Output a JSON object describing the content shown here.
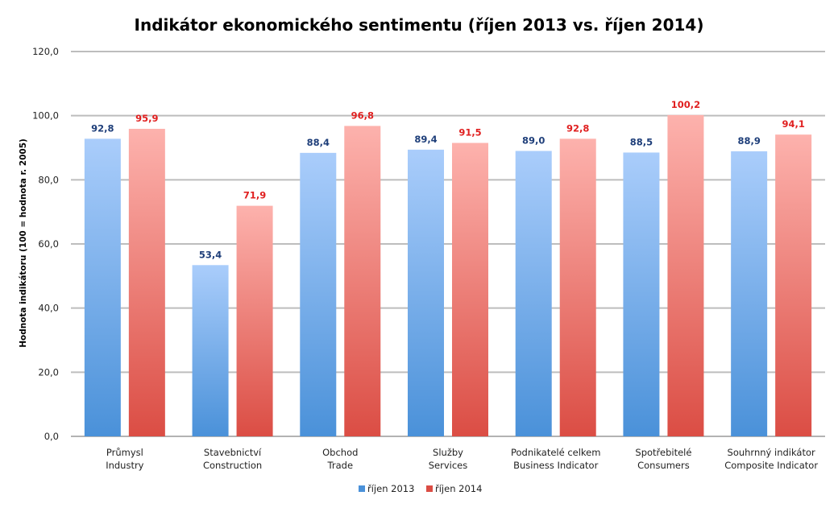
{
  "chart_data": {
    "type": "bar",
    "title": "Indikátor ekonomického sentimentu (říjen 2013 vs. říjen 2014)",
    "xlabel": "",
    "ylabel": "Hodnota indikátoru (100 = hodnota r. 2005)",
    "ylim": [
      0,
      120
    ],
    "yticks": [
      0,
      20,
      40,
      60,
      80,
      100,
      120
    ],
    "ytick_labels": [
      "0,0",
      "20,0",
      "40,0",
      "60,0",
      "80,0",
      "100,0",
      "120,0"
    ],
    "grid": true,
    "legend_position": "bottom",
    "categories": [
      [
        "Průmysl",
        "Industry"
      ],
      [
        "Stavebnictví",
        "Construction"
      ],
      [
        "Obchod",
        "Trade"
      ],
      [
        "Služby",
        "Services"
      ],
      [
        "Podnikatelé celkem",
        "Business Indicator"
      ],
      [
        "Spotřebitelé",
        "Consumers"
      ],
      [
        "Souhrnný indikátor",
        "Composite Indicator"
      ]
    ],
    "series": [
      {
        "name": "říjen 2013",
        "values": [
          92.8,
          53.4,
          88.4,
          89.4,
          89.0,
          88.5,
          88.9
        ],
        "labels": [
          "92,8",
          "53,4",
          "88,4",
          "89,4",
          "89,0",
          "88,5",
          "88,9"
        ],
        "color_top": "#aacdfb",
        "color_bottom": "#4a91d9",
        "label_color": "#1f3f7a"
      },
      {
        "name": "říjen 2014",
        "values": [
          95.9,
          71.9,
          96.8,
          91.5,
          92.8,
          100.2,
          94.1
        ],
        "labels": [
          "95,9",
          "71,9",
          "96,8",
          "91,5",
          "92,8",
          "100,2",
          "94,1"
        ],
        "color_top": "#fdb2ad",
        "color_bottom": "#db4d44",
        "label_color": "#e02020"
      }
    ]
  }
}
